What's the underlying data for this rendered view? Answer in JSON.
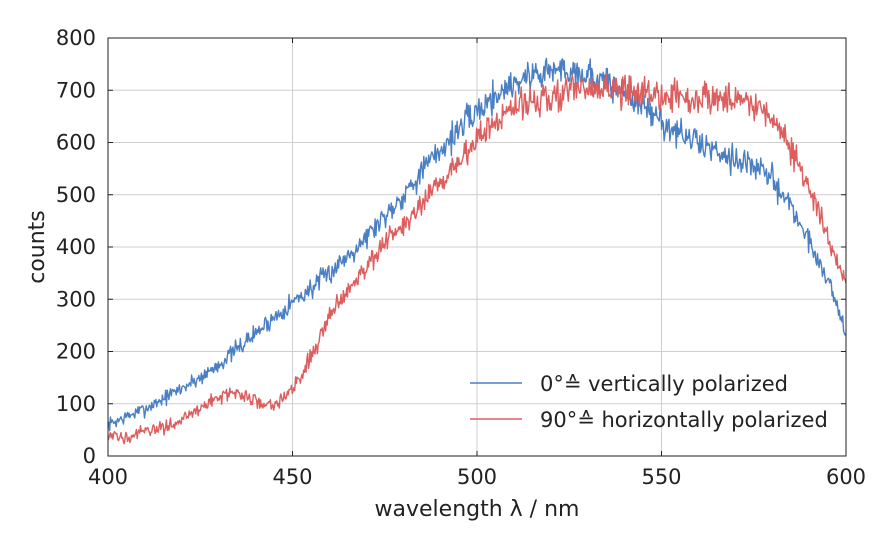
{
  "chart_data": {
    "type": "line",
    "title": "",
    "xlabel": "wavelength λ / nm",
    "ylabel": "counts",
    "xlim": [
      400,
      600
    ],
    "ylim": [
      0,
      800
    ],
    "xticks": [
      400,
      450,
      500,
      550,
      600
    ],
    "yticks": [
      0,
      100,
      200,
      300,
      400,
      500,
      600,
      700,
      800
    ],
    "grid": true,
    "legend_position": "lower-right",
    "x": [
      400,
      405,
      410,
      415,
      420,
      425,
      430,
      435,
      440,
      445,
      450,
      455,
      460,
      465,
      470,
      475,
      480,
      485,
      490,
      495,
      500,
      505,
      510,
      515,
      520,
      525,
      530,
      535,
      540,
      545,
      550,
      555,
      560,
      565,
      570,
      575,
      580,
      585,
      590,
      595,
      600
    ],
    "series": [
      {
        "name": "0°≙ vertically polarized",
        "color": "#4a7fc4",
        "values": [
          60,
          75,
          90,
          110,
          130,
          150,
          175,
          205,
          235,
          265,
          295,
          320,
          350,
          385,
          420,
          460,
          500,
          545,
          585,
          625,
          660,
          690,
          715,
          730,
          738,
          740,
          730,
          715,
          695,
          670,
          640,
          615,
          600,
          585,
          570,
          555,
          530,
          480,
          410,
          340,
          240
        ]
      },
      {
        "name": "90°≙ horizontally polarized",
        "color": "#dd5e5e",
        "values": [
          35,
          38,
          45,
          55,
          70,
          90,
          115,
          120,
          105,
          100,
          125,
          190,
          270,
          320,
          365,
          405,
          440,
          480,
          520,
          565,
          605,
          640,
          665,
          680,
          690,
          698,
          700,
          700,
          698,
          695,
          690,
          688,
          685,
          683,
          685,
          675,
          650,
          590,
          510,
          420,
          335
        ]
      }
    ]
  }
}
